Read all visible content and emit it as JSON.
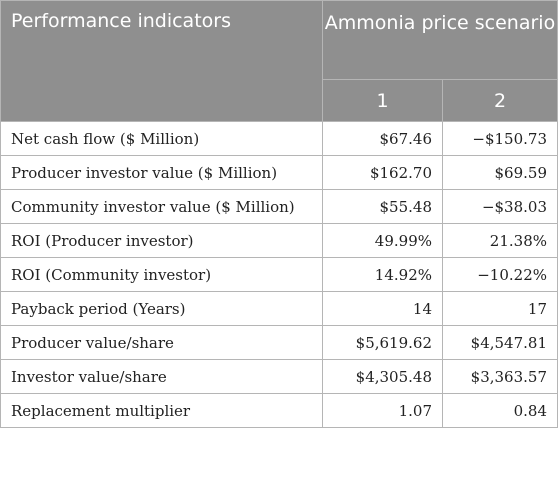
{
  "header": {
    "label": "Performance indicators",
    "group": "Ammonia price scenario",
    "scenarios": [
      "1",
      "2"
    ]
  },
  "rows": [
    {
      "label": "Net cash flow ($ Million)",
      "s1": "$67.46",
      "s2": "−$150.73"
    },
    {
      "label": "Producer investor value ($ Million)",
      "s1": "$162.70",
      "s2": "$69.59"
    },
    {
      "label": "Community investor value ($ Million)",
      "s1": "$55.48",
      "s2": "−$38.03"
    },
    {
      "label": "ROI (Producer investor)",
      "s1": "49.99%",
      "s2": "21.38%"
    },
    {
      "label": "ROI (Community investor)",
      "s1": "14.92%",
      "s2": "−10.22%"
    },
    {
      "label": "Payback period (Years)",
      "s1": "14",
      "s2": "17"
    },
    {
      "label": "Producer value/share",
      "s1": "$5,619.62",
      "s2": "$4,547.81"
    },
    {
      "label": "Investor value/share",
      "s1": "$4,305.48",
      "s2": "$3,363.57"
    },
    {
      "label": "Replacement multiplier",
      "s1": "1.07",
      "s2": "0.84"
    }
  ]
}
